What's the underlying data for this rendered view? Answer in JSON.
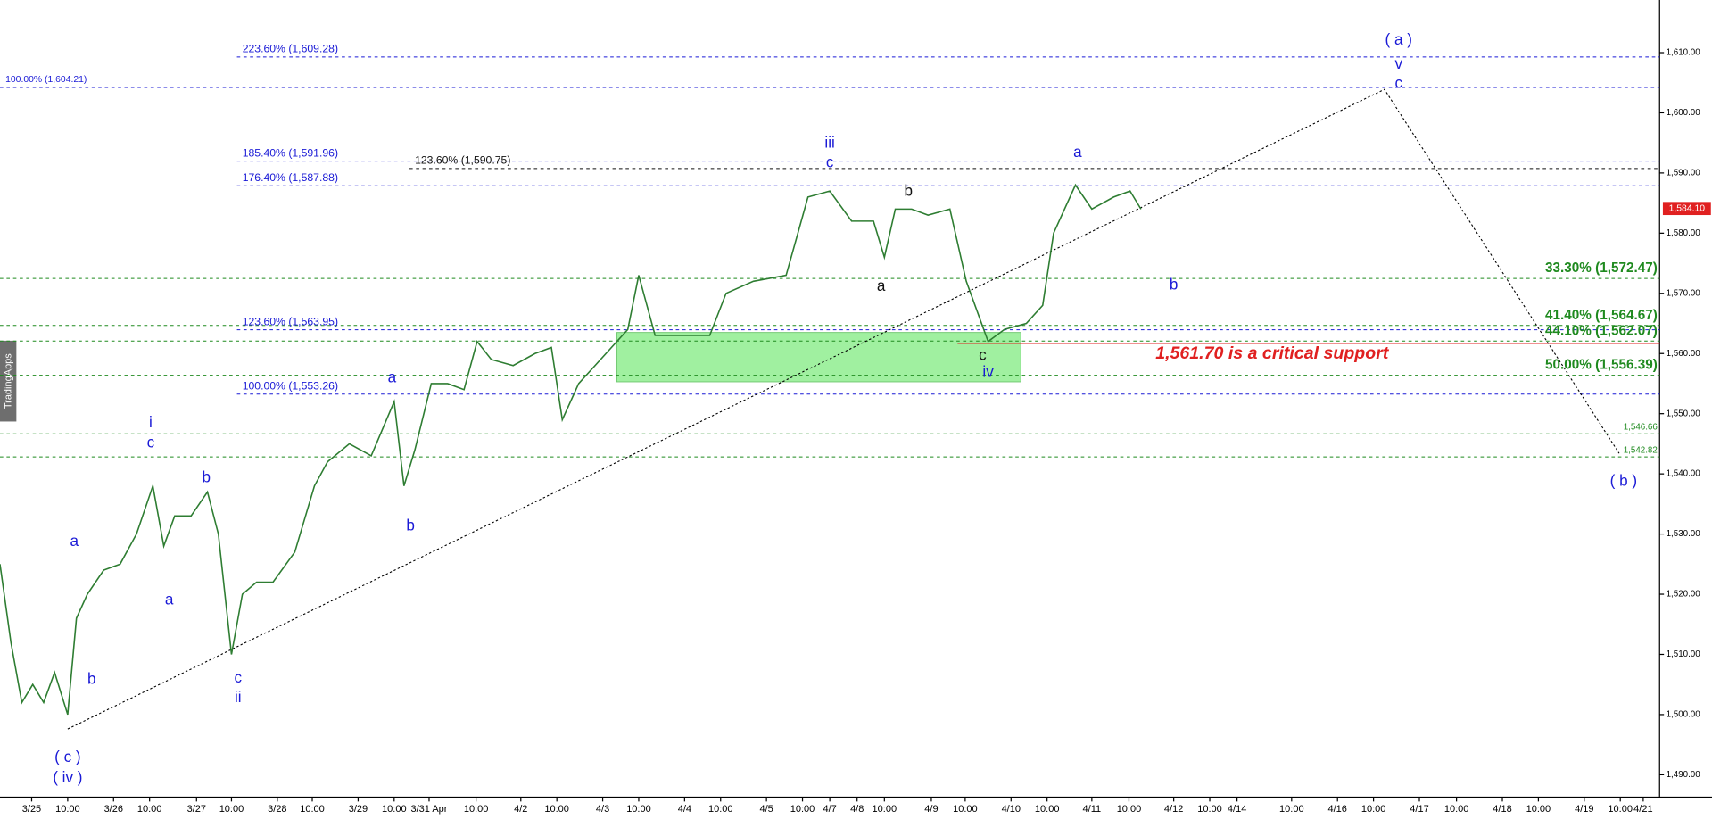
{
  "chart_data": {
    "type": "line",
    "watermark": "TradingApps",
    "xlim": [
      0,
      1520
    ],
    "ylim": [
      1486.28,
      1618.74
    ],
    "yticks": [
      {
        "value": 1490,
        "label": "1,490.00"
      },
      {
        "value": 1500,
        "label": "1,500.00"
      },
      {
        "value": 1510,
        "label": "1,510.00"
      },
      {
        "value": 1520,
        "label": "1,520.00"
      },
      {
        "value": 1530,
        "label": "1,530.00"
      },
      {
        "value": 1540,
        "label": "1,540.00"
      },
      {
        "value": 1550,
        "label": "1,550.00"
      },
      {
        "value": 1560,
        "label": "1,560.00"
      },
      {
        "value": 1570,
        "label": "1,570.00"
      },
      {
        "value": 1580,
        "label": "1,580.00"
      },
      {
        "value": 1590,
        "label": "1,590.00"
      },
      {
        "value": 1600,
        "label": "1,600.00"
      },
      {
        "value": 1610,
        "label": "1,610.00"
      }
    ],
    "xticks": [
      {
        "value": 29,
        "label": "3/25"
      },
      {
        "value": 62,
        "label": "10:00"
      },
      {
        "value": 104,
        "label": "3/26"
      },
      {
        "value": 137,
        "label": "10:00"
      },
      {
        "value": 180,
        "label": "3/27"
      },
      {
        "value": 212,
        "label": "10:00"
      },
      {
        "value": 254,
        "label": "3/28"
      },
      {
        "value": 286,
        "label": "10:00"
      },
      {
        "value": 328,
        "label": "3/29"
      },
      {
        "value": 361,
        "label": "10:00"
      },
      {
        "value": 393,
        "label": "3/31 Apr"
      },
      {
        "value": 436,
        "label": "10:00"
      },
      {
        "value": 477,
        "label": "4/2"
      },
      {
        "value": 510,
        "label": "10:00"
      },
      {
        "value": 552,
        "label": "4/3"
      },
      {
        "value": 585,
        "label": "10:00"
      },
      {
        "value": 627,
        "label": "4/4"
      },
      {
        "value": 660,
        "label": "10:00"
      },
      {
        "value": 702,
        "label": "4/5"
      },
      {
        "value": 735,
        "label": "10:00"
      },
      {
        "value": 760,
        "label": "4/7"
      },
      {
        "value": 785,
        "label": "4/8"
      },
      {
        "value": 810,
        "label": "10:00"
      },
      {
        "value": 853,
        "label": "4/9"
      },
      {
        "value": 884,
        "label": "10:00"
      },
      {
        "value": 926,
        "label": "4/10"
      },
      {
        "value": 959,
        "label": "10:00"
      },
      {
        "value": 1000,
        "label": "4/11"
      },
      {
        "value": 1034,
        "label": "10:00"
      },
      {
        "value": 1075,
        "label": "4/12"
      },
      {
        "value": 1108,
        "label": "10:00"
      },
      {
        "value": 1133,
        "label": "4/14"
      },
      {
        "value": 1183,
        "label": "10:00"
      },
      {
        "value": 1225,
        "label": "4/16"
      },
      {
        "value": 1258,
        "label": "10:00"
      },
      {
        "value": 1300,
        "label": "4/17"
      },
      {
        "value": 1334,
        "label": "10:00"
      },
      {
        "value": 1376,
        "label": "4/18"
      },
      {
        "value": 1409,
        "label": "10:00"
      },
      {
        "value": 1451,
        "label": "4/19"
      },
      {
        "value": 1484,
        "label": "10:00"
      },
      {
        "value": 1505,
        "label": "4/21"
      }
    ],
    "series": [
      {
        "color": "#2e7d32",
        "x": [
          0,
          10,
          20,
          30,
          40,
          50,
          62,
          70,
          80,
          95,
          110,
          125,
          140,
          150,
          160,
          175,
          190,
          200,
          212,
          222,
          235,
          250,
          270,
          288,
          300,
          320,
          340,
          361,
          370,
          380,
          395,
          410,
          425,
          437,
          450,
          470,
          490,
          505,
          515,
          530,
          545,
          560,
          575,
          585,
          600,
          625,
          650,
          665,
          690,
          720,
          740,
          760,
          780,
          800,
          810,
          820,
          835,
          850,
          870,
          885,
          905,
          920,
          940,
          955,
          965,
          985,
          1000,
          1020,
          1035,
          1045
        ],
        "values": [
          1525,
          1512,
          1502,
          1505,
          1502,
          1507,
          1500,
          1516,
          1520,
          1524,
          1525,
          1530,
          1538,
          1528,
          1533,
          1533,
          1537,
          1530,
          1510,
          1520,
          1522,
          1522,
          1527,
          1538,
          1542,
          1545,
          1543,
          1552,
          1538,
          1544,
          1555,
          1555,
          1554,
          1562,
          1559,
          1558,
          1560,
          1561,
          1549,
          1555,
          1558,
          1561,
          1564,
          1573,
          1563,
          1563,
          1563,
          1570,
          1572,
          1573,
          1586,
          1587,
          1582,
          1582,
          1576,
          1584,
          1584,
          1583,
          1584,
          1572,
          1562,
          1564,
          1565,
          1568,
          1580,
          1588,
          1584,
          1586,
          1587,
          1584
        ]
      }
    ],
    "levels": [
      {
        "value": 1609.28,
        "label": "223.60% (1,609.28)",
        "color": "#1a1ad6",
        "anchor": "left"
      },
      {
        "value": 1604.21,
        "label": "100.00% (1,604.21)",
        "color": "#1a1ad6",
        "anchor": "edge"
      },
      {
        "value": 1591.96,
        "label": "185.40% (1,591.96)",
        "color": "#1a1ad6",
        "anchor": "left"
      },
      {
        "value": 1590.75,
        "label": "123.60% (1,590.75)",
        "color": "#111111",
        "anchor": "center"
      },
      {
        "value": 1587.88,
        "label": "176.40% (1,587.88)",
        "color": "#1a1ad6",
        "anchor": "left"
      },
      {
        "value": 1572.47,
        "label": "33.30% (1,572.47)",
        "color": "#1f8a1f",
        "anchor": "right"
      },
      {
        "value": 1564.67,
        "label": "41.40% (1,564.67)",
        "color": "#1f8a1f",
        "anchor": "right"
      },
      {
        "value": 1563.95,
        "label": "123.60% (1,563.95)",
        "color": "#1a1ad6",
        "anchor": "left"
      },
      {
        "value": 1562.07,
        "label": "44.10% (1,562.07)",
        "color": "#1f8a1f",
        "anchor": "right"
      },
      {
        "value": 1556.39,
        "label": "50.00% (1,556.39)",
        "color": "#1f8a1f",
        "anchor": "right"
      },
      {
        "value": 1553.26,
        "label": "100.00% (1,553.26)",
        "color": "#1a1ad6",
        "anchor": "left"
      },
      {
        "value": 1546.66,
        "label": "1,546.66",
        "color": "#1f8a1f",
        "anchor": "right-small"
      },
      {
        "value": 1542.82,
        "label": "1,542.82",
        "color": "#1f8a1f",
        "anchor": "right-small"
      }
    ],
    "support": {
      "value": 1561.7,
      "label": "1,561.70 is a critical support",
      "color": "#e02020",
      "x_start": 877
    },
    "zone": {
      "from": 1555.3,
      "to": 1563.5,
      "x": [
        565,
        935
      ],
      "color": "#90ee90"
    },
    "projection": {
      "x": [
        62,
        1268,
        1483
      ],
      "values": [
        1497.6,
        1603.9,
        1543.4
      ]
    },
    "last_price": {
      "value": 1584.1,
      "label": "1,584.10",
      "color": "#e02020"
    },
    "waves": [
      {
        "text": "( c )",
        "x": 62,
        "y": 1492.8,
        "color": "#1a1ad6"
      },
      {
        "text": "( iv )",
        "x": 62,
        "y": 1489.4,
        "color": "#1a1ad6"
      },
      {
        "text": "a",
        "x": 68,
        "y": 1528.7,
        "color": "#1a1ad6"
      },
      {
        "text": "b",
        "x": 84,
        "y": 1505.8,
        "color": "#1a1ad6"
      },
      {
        "text": "i",
        "x": 138,
        "y": 1548.4,
        "color": "#1a1ad6"
      },
      {
        "text": "c",
        "x": 138,
        "y": 1545.1,
        "color": "#1a1ad6"
      },
      {
        "text": "a",
        "x": 155,
        "y": 1519.0,
        "color": "#1a1ad6"
      },
      {
        "text": "b",
        "x": 189,
        "y": 1539.3,
        "color": "#1a1ad6"
      },
      {
        "text": "c",
        "x": 218,
        "y": 1506.0,
        "color": "#1a1ad6"
      },
      {
        "text": "ii",
        "x": 218,
        "y": 1502.7,
        "color": "#1a1ad6"
      },
      {
        "text": "a",
        "x": 359,
        "y": 1555.9,
        "color": "#1a1ad6"
      },
      {
        "text": "b",
        "x": 376,
        "y": 1531.3,
        "color": "#1a1ad6"
      },
      {
        "text": "iii",
        "x": 760,
        "y": 1594.9,
        "color": "#1a1ad6"
      },
      {
        "text": "c",
        "x": 760,
        "y": 1591.6,
        "color": "#1a1ad6"
      },
      {
        "text": "a",
        "x": 807,
        "y": 1571.1,
        "color": "#111111"
      },
      {
        "text": "b",
        "x": 832,
        "y": 1586.9,
        "color": "#111111"
      },
      {
        "text": "c",
        "x": 900,
        "y": 1559.6,
        "color": "#111111"
      },
      {
        "text": "iv",
        "x": 905,
        "y": 1556.8,
        "color": "#1a1ad6"
      },
      {
        "text": "a",
        "x": 987,
        "y": 1593.3,
        "color": "#1a1ad6"
      },
      {
        "text": "b",
        "x": 1075,
        "y": 1571.3,
        "color": "#1a1ad6"
      },
      {
        "text": "( a )",
        "x": 1281,
        "y": 1612.0,
        "color": "#1a1ad6"
      },
      {
        "text": "v",
        "x": 1281,
        "y": 1608.0,
        "color": "#1a1ad6"
      },
      {
        "text": "c",
        "x": 1281,
        "y": 1604.8,
        "color": "#1a1ad6"
      },
      {
        "text": "( b )",
        "x": 1487,
        "y": 1538.7,
        "color": "#1a1ad6"
      }
    ]
  }
}
